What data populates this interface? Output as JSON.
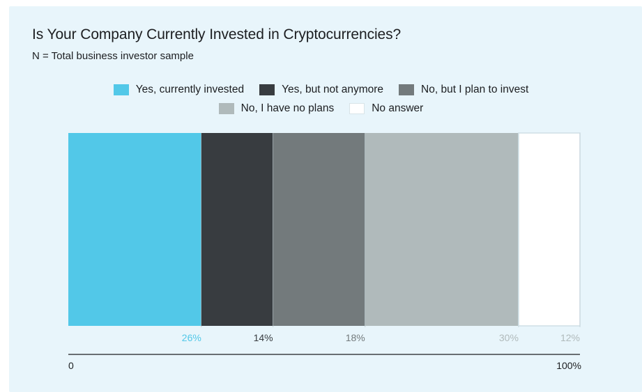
{
  "title": "Is Your Company Currently Invested in Cryptocurrencies?",
  "subtitle": "N = Total business investor sample",
  "legend": [
    {
      "label": "Yes, currently invested",
      "color": "#52c8e8"
    },
    {
      "label": "Yes, but not anymore",
      "color": "#383c40"
    },
    {
      "label": "No, but I plan to invest",
      "color": "#737a7c"
    },
    {
      "label": "No, I have no plans",
      "color": "#b0babb"
    },
    {
      "label": "No answer",
      "color": "#ffffff"
    }
  ],
  "chart_data": {
    "type": "bar",
    "orientation": "horizontal-stacked-100",
    "series": [
      {
        "name": "Yes, currently invested",
        "value": 26,
        "label": "26%",
        "color": "#52c8e8",
        "label_color": "#52c8e8"
      },
      {
        "name": "Yes, but not anymore",
        "value": 14,
        "label": "14%",
        "color": "#383c40",
        "label_color": "#383c40"
      },
      {
        "name": "No, but I plan to invest",
        "value": 18,
        "label": "18%",
        "color": "#737a7c",
        "label_color": "#737a7c"
      },
      {
        "name": "No, I have no plans",
        "value": 30,
        "label": "30%",
        "color": "#b0babb",
        "label_color": "#b0babb"
      },
      {
        "name": "No answer",
        "value": 12,
        "label": "12%",
        "color": "#ffffff",
        "label_color": "#b0babb"
      }
    ],
    "xlim": [
      0,
      100
    ],
    "axis_labels": [
      "0",
      "100%"
    ]
  }
}
